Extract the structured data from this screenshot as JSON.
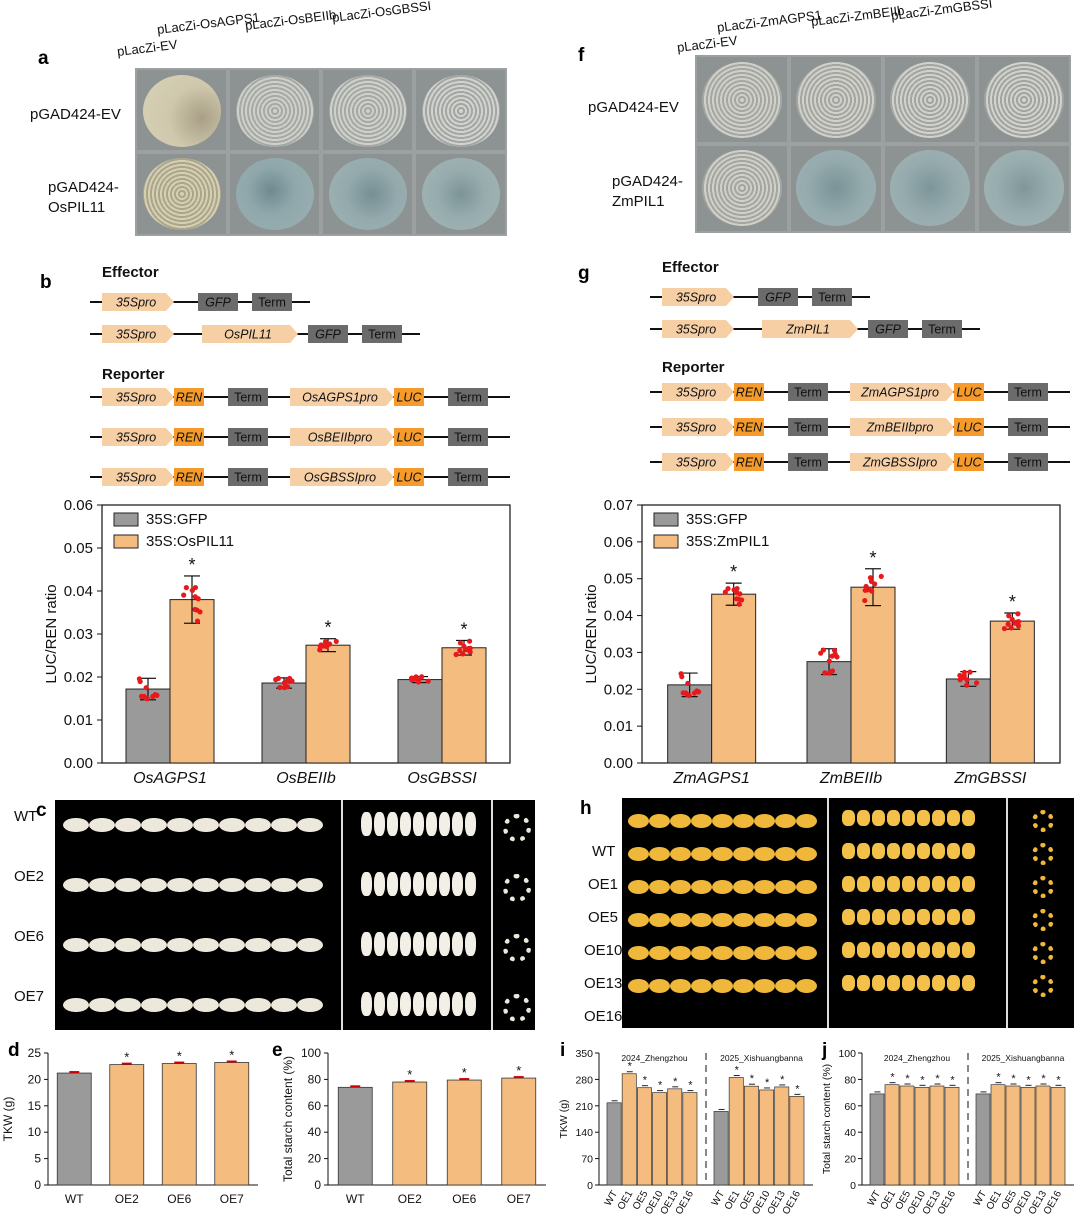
{
  "panels": {
    "a": {
      "letter": "a",
      "columns": [
        "pLacZi-EV",
        "pLacZi-OsAGPS1",
        "pLacZi-OsBEIIb",
        "pLacZi-OsGBSSI"
      ],
      "rows": [
        "pGAD424-EV",
        "pGAD424-\nOsPIL11"
      ]
    },
    "b": {
      "letter": "b",
      "effector_title": "Effector",
      "reporter_title": "Reporter",
      "effector_constructs": [
        [
          "35Spro",
          "GFP",
          "Term"
        ],
        [
          "35Spro",
          "OsPIL11",
          "GFP",
          "Term"
        ]
      ],
      "reporter_constructs": [
        [
          "35Spro",
          "REN",
          "Term",
          "OsAGPS1pro",
          "LUC",
          "Term"
        ],
        [
          "35Spro",
          "REN",
          "Term",
          "OsBEIIbpro",
          "LUC",
          "Term"
        ],
        [
          "35Spro",
          "REN",
          "Term",
          "OsGBSSIpro",
          "LUC",
          "Term"
        ]
      ]
    },
    "c": {
      "letter": "c",
      "lines": [
        "WT",
        "OE2",
        "OE6",
        "OE7"
      ]
    },
    "d": {
      "letter": "d"
    },
    "e": {
      "letter": "e"
    },
    "f": {
      "letter": "f",
      "columns": [
        "pLacZi-EV",
        "pLacZi-ZmAGPS1",
        "pLacZi-ZmBEIIb",
        "pLacZi-ZmGBSSI"
      ],
      "rows": [
        "pGAD424-EV",
        "pGAD424-\nZmPIL1"
      ]
    },
    "g": {
      "letter": "g",
      "effector_title": "Effector",
      "reporter_title": "Reporter",
      "effector_constructs": [
        [
          "35Spro",
          "GFP",
          "Term"
        ],
        [
          "35Spro",
          "ZmPIL1",
          "GFP",
          "Term"
        ]
      ],
      "reporter_constructs": [
        [
          "35Spro",
          "REN",
          "Term",
          "ZmAGPS1pro",
          "LUC",
          "Term"
        ],
        [
          "35Spro",
          "REN",
          "Term",
          "ZmBEIIbpro",
          "LUC",
          "Term"
        ],
        [
          "35Spro",
          "REN",
          "Term",
          "ZmGBSSIpro",
          "LUC",
          "Term"
        ]
      ]
    },
    "h": {
      "letter": "h",
      "lines": [
        "WT",
        "OE1",
        "OE5",
        "OE10",
        "OE13",
        "OE16"
      ]
    },
    "i": {
      "letter": "i"
    },
    "j": {
      "letter": "j"
    }
  },
  "colors": {
    "gray_bar": "#9a9a9a",
    "orange_bar": "#f5bc80",
    "orange_box": "#f7cfa5",
    "orange_strong": "#f59a2b",
    "term_gray": "#6b6b6b",
    "dot_red": "#e8191c",
    "plate_blue": "#8aa0a6",
    "plate_cream": "#d4ceb3"
  },
  "chart_data": [
    {
      "panel": "b",
      "type": "bar",
      "ylabel": "LUC/REN ratio",
      "ylim": [
        0,
        0.06
      ],
      "yticks": [
        "0.00",
        "0.01",
        "0.02",
        "0.03",
        "0.04",
        "0.05",
        "0.06"
      ],
      "categories": [
        "OsAGPS1",
        "OsBEIIb",
        "OsGBSSI"
      ],
      "legend_position": "top-left",
      "series": [
        {
          "name": "35S:GFP",
          "values": [
            0.0172,
            0.0186,
            0.0194
          ],
          "errors": [
            0.0025,
            0.0012,
            0.0007
          ]
        },
        {
          "name": "35S:OsPIL11",
          "values": [
            0.038,
            0.0274,
            0.0268
          ],
          "errors": [
            0.0055,
            0.0015,
            0.0017
          ]
        }
      ],
      "significance": [
        "*",
        "*",
        "*"
      ]
    },
    {
      "panel": "g",
      "type": "bar",
      "ylabel": "LUC/REN ratio",
      "ylim": [
        0,
        0.07
      ],
      "yticks": [
        "0.00",
        "0.01",
        "0.02",
        "0.03",
        "0.04",
        "0.05",
        "0.06",
        "0.07"
      ],
      "categories": [
        "ZmAGPS1",
        "ZmBEIIb",
        "ZmGBSSI"
      ],
      "legend_position": "top-left",
      "series": [
        {
          "name": "35S:GFP",
          "values": [
            0.0212,
            0.0275,
            0.0228
          ],
          "errors": [
            0.0032,
            0.0035,
            0.002
          ]
        },
        {
          "name": "35S:ZmPIL1",
          "values": [
            0.0458,
            0.0477,
            0.0385
          ],
          "errors": [
            0.003,
            0.005,
            0.0022
          ]
        }
      ],
      "significance": [
        "*",
        "*",
        "*"
      ]
    },
    {
      "panel": "d",
      "type": "bar",
      "ylabel": "TKW (g)",
      "ylim": [
        0,
        25
      ],
      "yticks": [
        "0",
        "5",
        "10",
        "15",
        "20",
        "25"
      ],
      "categories": [
        "WT",
        "OE2",
        "OE6",
        "OE7"
      ],
      "values": [
        21.2,
        22.8,
        23.0,
        23.2
      ],
      "significance": [
        "",
        "*",
        "*",
        "*"
      ]
    },
    {
      "panel": "e",
      "type": "bar",
      "ylabel": "Total starch content (%)",
      "ylim": [
        0,
        100
      ],
      "yticks": [
        "0",
        "20",
        "40",
        "60",
        "80",
        "100"
      ],
      "categories": [
        "WT",
        "OE2",
        "OE6",
        "OE7"
      ],
      "values": [
        74,
        78,
        79.5,
        81
      ],
      "significance": [
        "",
        "*",
        "*",
        "*"
      ]
    },
    {
      "panel": "i",
      "type": "bar",
      "ylabel": "TKW (g)",
      "ylim": [
        0,
        350
      ],
      "yticks": [
        "0",
        "70",
        "140",
        "210",
        "280",
        "350"
      ],
      "groups": [
        "2024_Zhengzhou",
        "2025_Xishuangbanna"
      ],
      "categories": [
        "WT",
        "OE1",
        "OE5",
        "OE10",
        "OE13",
        "OE16"
      ],
      "series": [
        {
          "name": "2024_Zhengzhou",
          "values": [
            218,
            295,
            258,
            245,
            255,
            245
          ]
        },
        {
          "name": "2025_Xishuangbanna",
          "values": [
            195,
            285,
            262,
            252,
            260,
            235
          ]
        }
      ],
      "significance": [
        "",
        "*",
        "*",
        "*",
        "*",
        "*"
      ]
    },
    {
      "panel": "j",
      "type": "bar",
      "ylabel": "Total starch content (%)",
      "ylim": [
        0,
        100
      ],
      "yticks": [
        "0",
        "20",
        "40",
        "60",
        "80",
        "100"
      ],
      "groups": [
        "2024_Zhengzhou",
        "2025_Xishuangbanna"
      ],
      "categories": [
        "WT",
        "OE1",
        "OE5",
        "OE10",
        "OE13",
        "OE16"
      ],
      "series": [
        {
          "name": "2024_Zhengzhou",
          "values": [
            69,
            76,
            75,
            74,
            75,
            74
          ]
        },
        {
          "name": "2025_Xishuangbanna",
          "values": [
            69,
            76,
            75,
            74,
            75,
            74
          ]
        }
      ],
      "significance": [
        "",
        "*",
        "*",
        "*",
        "*",
        "*"
      ]
    }
  ]
}
